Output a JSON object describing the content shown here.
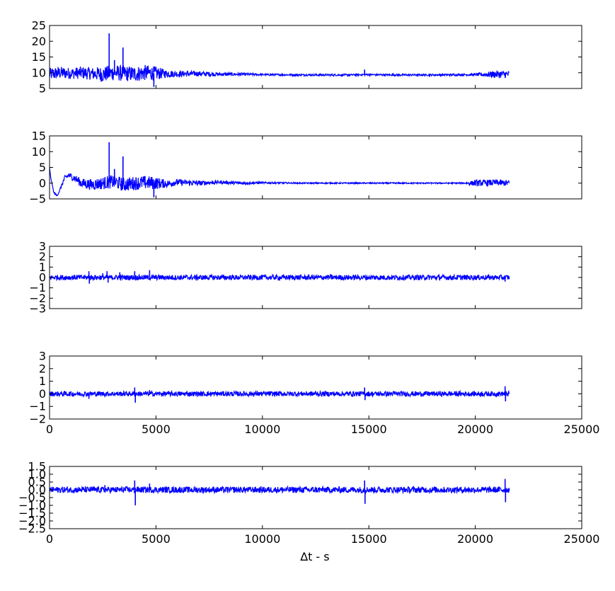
{
  "figure": {
    "xlabel": "∆t - s"
  },
  "chart_data": [
    {
      "type": "line",
      "title": "",
      "xlabel": "",
      "ylabel": "",
      "xlim": [
        0,
        25000
      ],
      "ylim": [
        5,
        25
      ],
      "yticks": [
        5,
        10,
        15,
        20,
        25
      ],
      "xticks": [
        0,
        5000,
        10000,
        15000,
        20000,
        25000
      ],
      "show_xtick_labels": false,
      "grid": false,
      "legend": "none",
      "line_color": "#0000ff",
      "series": [
        {
          "x": [
            0,
            500,
            1000,
            1500,
            2000,
            2500,
            2800,
            3000,
            3400,
            4000,
            4500,
            5000,
            5500,
            6000,
            7000,
            8000,
            9000,
            10000,
            12000,
            14000,
            14800,
            16000,
            18000,
            20000,
            21000,
            21600
          ],
          "y": [
            9.5,
            10,
            9.8,
            10,
            9.7,
            9.5,
            9.8,
            10,
            9.8,
            9.6,
            10,
            9.8,
            9.7,
            9.6,
            9.7,
            9.5,
            9.5,
            9.4,
            9.3,
            9.3,
            9.4,
            9.3,
            9.3,
            9.4,
            9.5,
            9.5
          ],
          "envelope_halfwidth": [
            2,
            2,
            1.8,
            2,
            2,
            2.5,
            2.5,
            2.5,
            2.5,
            2.5,
            2.5,
            2.2,
            1.2,
            1,
            0.8,
            0.6,
            0.5,
            0.3,
            0.3,
            0.3,
            0.3,
            0.3,
            0.3,
            0.4,
            1.2,
            1.2
          ],
          "spikes": [
            {
              "x": 2800,
              "y": 22.5
            },
            {
              "x": 3050,
              "y": 14
            },
            {
              "x": 3450,
              "y": 18
            },
            {
              "x": 4900,
              "y": 5.5
            },
            {
              "x": 14800,
              "y": 11
            }
          ]
        }
      ]
    },
    {
      "type": "line",
      "title": "",
      "xlabel": "",
      "ylabel": "",
      "xlim": [
        0,
        25000
      ],
      "ylim": [
        -5,
        15
      ],
      "yticks": [
        -5,
        0,
        5,
        10,
        15
      ],
      "xticks": [
        0,
        5000,
        10000,
        15000,
        20000,
        25000
      ],
      "show_xtick_labels": false,
      "grid": false,
      "legend": "none",
      "line_color": "#0000ff",
      "series": [
        {
          "x": [
            0,
            50,
            200,
            350,
            500,
            700,
            900,
            1200,
            1500,
            2000,
            2500,
            3000,
            3500,
            4000,
            4500,
            5000,
            5500,
            6000,
            7000,
            8000,
            9000,
            10000,
            12000,
            14000,
            16000,
            18000,
            19500,
            20000,
            21000,
            21600
          ],
          "y": [
            5,
            2,
            -3,
            -4,
            -2,
            1.5,
            2.5,
            1.5,
            0,
            -0.5,
            0,
            0.5,
            -0.5,
            0,
            0.2,
            0,
            -0.2,
            0.3,
            0,
            0.3,
            0,
            0.1,
            0,
            0,
            0,
            0,
            0,
            0,
            0.2,
            0
          ],
          "envelope_halfwidth": [
            0,
            0.2,
            0.3,
            0.3,
            0.5,
            0.8,
            1,
            1.2,
            1.5,
            1.8,
            2,
            2.2,
            2.2,
            2.2,
            2.2,
            2,
            1.2,
            1,
            0.8,
            0.5,
            0.5,
            0.3,
            0.2,
            0.2,
            0.2,
            0.2,
            0.2,
            1,
            1,
            1
          ],
          "spikes": [
            {
              "x": 2800,
              "y": 13
            },
            {
              "x": 3050,
              "y": 4.5
            },
            {
              "x": 3450,
              "y": 8.5
            },
            {
              "x": 4900,
              "y": -4.5
            }
          ]
        }
      ]
    },
    {
      "type": "line",
      "title": "",
      "xlabel": "",
      "ylabel": "",
      "xlim": [
        0,
        25000
      ],
      "ylim": [
        -3,
        3
      ],
      "yticks": [
        -3,
        -2,
        -1,
        0,
        1,
        2,
        3
      ],
      "xticks": [
        0,
        5000,
        10000,
        15000,
        20000,
        25000
      ],
      "show_xtick_labels": false,
      "grid": false,
      "legend": "none",
      "line_color": "#0000ff",
      "series": [
        {
          "x": [
            0,
            21600
          ],
          "y": [
            0,
            0
          ],
          "envelope_halfwidth": [
            0.25,
            0.25
          ],
          "spikes": [
            {
              "x": 1850,
              "y": 0.6
            },
            {
              "x": 1870,
              "y": -0.6
            },
            {
              "x": 2500,
              "y": 0.4
            },
            {
              "x": 2700,
              "y": 0.6
            },
            {
              "x": 2750,
              "y": -0.5
            },
            {
              "x": 3300,
              "y": 0.5
            },
            {
              "x": 4000,
              "y": 0.6
            },
            {
              "x": 4700,
              "y": 0.7
            },
            {
              "x": 21400,
              "y": -0.4
            }
          ]
        }
      ]
    },
    {
      "type": "line",
      "title": "",
      "xlabel": "",
      "ylabel": "",
      "xlim": [
        0,
        25000
      ],
      "ylim": [
        -2,
        3
      ],
      "yticks": [
        -2,
        -1,
        0,
        1,
        2,
        3
      ],
      "xticks": [
        0,
        5000,
        10000,
        15000,
        20000,
        25000
      ],
      "show_xtick_labels": true,
      "grid": false,
      "legend": "none",
      "line_color": "#0000ff",
      "series": [
        {
          "x": [
            0,
            21600
          ],
          "y": [
            0,
            0
          ],
          "envelope_halfwidth": [
            0.2,
            0.2
          ],
          "spikes": [
            {
              "x": 1850,
              "y": -0.4
            },
            {
              "x": 4000,
              "y": 0.5
            },
            {
              "x": 4030,
              "y": -0.7
            },
            {
              "x": 4700,
              "y": 0.3
            },
            {
              "x": 14800,
              "y": 0.5
            },
            {
              "x": 14820,
              "y": -0.5
            },
            {
              "x": 21400,
              "y": 0.6
            },
            {
              "x": 21420,
              "y": -0.6
            }
          ]
        }
      ]
    },
    {
      "type": "line",
      "title": "",
      "xlabel": "∆t - s",
      "ylabel": "",
      "xlim": [
        0,
        25000
      ],
      "ylim": [
        -2.5,
        1.5
      ],
      "yticks": [
        -2.5,
        -2.0,
        -1.5,
        -1.0,
        -0.5,
        0.0,
        0.5,
        1.0,
        1.5
      ],
      "ytick_labels": [
        "−2.5",
        "−2.0",
        "−1.5",
        "−1.0",
        "−0.5",
        "0.0",
        "0.5",
        "1.0",
        "1.5"
      ],
      "xticks": [
        0,
        5000,
        10000,
        15000,
        20000,
        25000
      ],
      "show_xtick_labels": true,
      "grid": false,
      "legend": "none",
      "line_color": "#0000ff",
      "series": [
        {
          "x": [
            0,
            21600
          ],
          "y": [
            0,
            0
          ],
          "envelope_halfwidth": [
            0.2,
            0.2
          ],
          "spikes": [
            {
              "x": 2600,
              "y": 0.3
            },
            {
              "x": 4000,
              "y": 0.6
            },
            {
              "x": 4030,
              "y": -1.0
            },
            {
              "x": 4700,
              "y": 0.4
            },
            {
              "x": 14800,
              "y": 0.6
            },
            {
              "x": 14820,
              "y": -0.9
            },
            {
              "x": 21400,
              "y": 0.7
            },
            {
              "x": 21420,
              "y": -0.8
            }
          ]
        }
      ]
    }
  ]
}
